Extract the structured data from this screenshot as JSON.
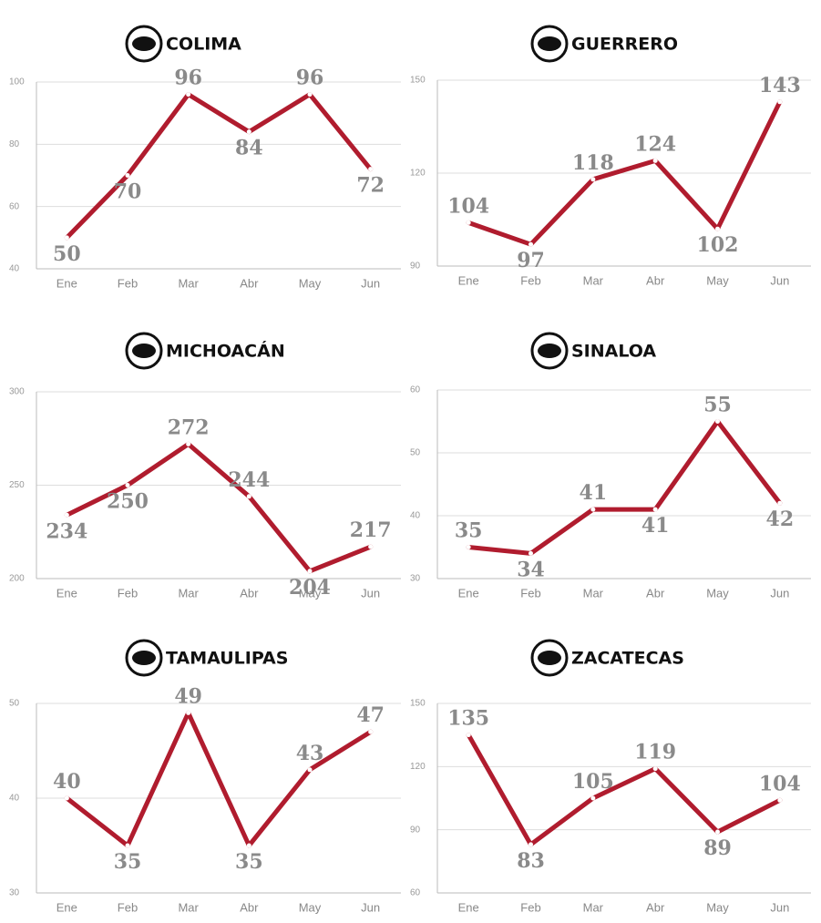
{
  "chart_data": [
    {
      "type": "line",
      "title": "COLIMA",
      "categories": [
        "Ene",
        "Feb",
        "Mar",
        "Abr",
        "May",
        "Jun"
      ],
      "values": [
        50,
        70,
        96,
        84,
        96,
        72
      ],
      "color": "#b01c2e",
      "ylim": [
        40,
        100
      ],
      "yticks": [
        40,
        60,
        80,
        100
      ],
      "grid": true
    },
    {
      "type": "line",
      "title": "GUERRERO",
      "categories": [
        "Ene",
        "Feb",
        "Mar",
        "Abr",
        "May",
        "Jun"
      ],
      "values": [
        104,
        97,
        118,
        124,
        102,
        143
      ],
      "color": "#b01c2e",
      "ylim": [
        90,
        150
      ],
      "yticks": [
        90,
        120,
        150
      ],
      "grid": true
    },
    {
      "type": "line",
      "title": "MICHOACÁN",
      "categories": [
        "Ene",
        "Feb",
        "Mar",
        "Abr",
        "May",
        "Jun"
      ],
      "values": [
        234,
        250,
        272,
        244,
        204,
        217
      ],
      "color": "#b01c2e",
      "ylim": [
        200,
        300
      ],
      "yticks": [
        200,
        250,
        300
      ],
      "grid": true
    },
    {
      "type": "line",
      "title": "SINALOA",
      "categories": [
        "Ene",
        "Feb",
        "Mar",
        "Abr",
        "May",
        "Jun"
      ],
      "values": [
        35,
        34,
        41,
        41,
        55,
        42
      ],
      "color": "#b01c2e",
      "ylim": [
        30,
        60
      ],
      "yticks": [
        30,
        40,
        50,
        60
      ],
      "grid": true
    },
    {
      "type": "line",
      "title": "TAMAULIPAS",
      "categories": [
        "Ene",
        "Feb",
        "Mar",
        "Abr",
        "May",
        "Jun"
      ],
      "values": [
        40,
        35,
        49,
        35,
        43,
        47
      ],
      "color": "#b01c2e",
      "ylim": [
        30,
        50
      ],
      "yticks": [
        30,
        40,
        50
      ],
      "grid": true
    },
    {
      "type": "line",
      "title": "ZACATECAS",
      "categories": [
        "Ene",
        "Feb",
        "Mar",
        "Abr",
        "May",
        "Jun"
      ],
      "values": [
        135,
        83,
        105,
        119,
        89,
        104
      ],
      "color": "#b01c2e",
      "ylim": [
        60,
        150
      ],
      "yticks": [
        60,
        90,
        120,
        150
      ],
      "grid": true
    }
  ]
}
